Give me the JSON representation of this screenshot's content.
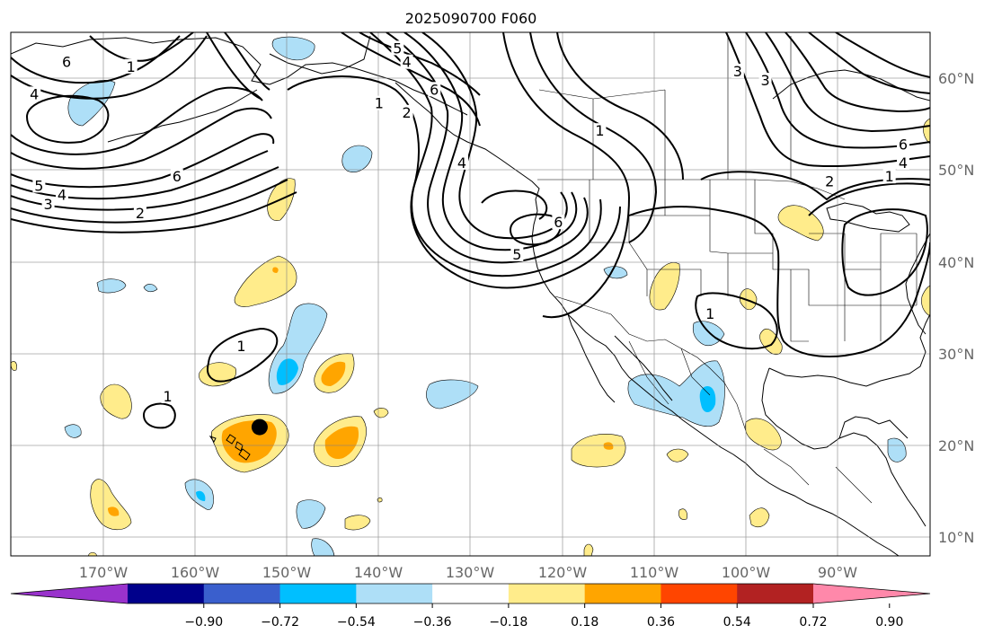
{
  "title": "2025090700 F060",
  "colors": {
    "land_outline": "#000000",
    "grid": "#808080",
    "contour": "#000000",
    "light_blue": "#aedff7",
    "blue": "#00bfff",
    "yellow": "#ffec8b",
    "orange": "#ffa500",
    "marker": "#000000"
  },
  "map": {
    "lon_range": [
      -180,
      -80
    ],
    "lat_range": [
      8,
      65
    ],
    "lon_ticks": [
      "170°W",
      "160°W",
      "150°W",
      "140°W",
      "130°W",
      "120°W",
      "110°W",
      "100°W",
      "90°W"
    ],
    "lat_ticks": [
      "10°N",
      "20°N",
      "30°N",
      "40°N",
      "50°N",
      "60°N"
    ],
    "marker": {
      "lon": -153,
      "lat": 22
    },
    "contour_labels": [
      {
        "text": "6",
        "lon": -174,
        "lat": 61.5
      },
      {
        "text": "4",
        "lon": -177.5,
        "lat": 58
      },
      {
        "text": "1",
        "lon": -167,
        "lat": 61
      },
      {
        "text": "6",
        "lon": -162,
        "lat": 49
      },
      {
        "text": "5",
        "lon": -177,
        "lat": 48
      },
      {
        "text": "4",
        "lon": -174.5,
        "lat": 47
      },
      {
        "text": "3",
        "lon": -176,
        "lat": 46
      },
      {
        "text": "2",
        "lon": -166,
        "lat": 45
      },
      {
        "text": "5",
        "lon": -138,
        "lat": 63
      },
      {
        "text": "4",
        "lon": -137,
        "lat": 61.5
      },
      {
        "text": "6",
        "lon": -134,
        "lat": 58.5
      },
      {
        "text": "1",
        "lon": -140,
        "lat": 57
      },
      {
        "text": "2",
        "lon": -137,
        "lat": 56
      },
      {
        "text": "4",
        "lon": -131,
        "lat": 50.5
      },
      {
        "text": "6",
        "lon": -120.5,
        "lat": 44
      },
      {
        "text": "5",
        "lon": -125,
        "lat": 40.5
      },
      {
        "text": "1",
        "lon": -116,
        "lat": 54
      },
      {
        "text": "3",
        "lon": -101,
        "lat": 60.5
      },
      {
        "text": "3",
        "lon": -98,
        "lat": 59.5
      },
      {
        "text": "6",
        "lon": -83,
        "lat": 52.5
      },
      {
        "text": "4",
        "lon": -83,
        "lat": 50.5
      },
      {
        "text": "2",
        "lon": -91,
        "lat": 48.5
      },
      {
        "text": "1",
        "lon": -84.5,
        "lat": 49
      },
      {
        "text": "1",
        "lon": -104,
        "lat": 34
      },
      {
        "text": "1",
        "lon": -155,
        "lat": 30.5
      },
      {
        "text": "1",
        "lon": -163,
        "lat": 25
      }
    ]
  },
  "colorbar": {
    "ticks": [
      "−0.90",
      "−0.72",
      "−0.54",
      "−0.36",
      "−0.18",
      "0.18",
      "0.36",
      "0.54",
      "0.72",
      "0.90"
    ],
    "bin_colors": [
      "#9932cc",
      "#00008b",
      "#3a5fcd",
      "#00bfff",
      "#aedff7",
      "#ffffff",
      "#ffec8b",
      "#ffa500",
      "#ff4500",
      "#b22222",
      "#ff88aa"
    ]
  }
}
